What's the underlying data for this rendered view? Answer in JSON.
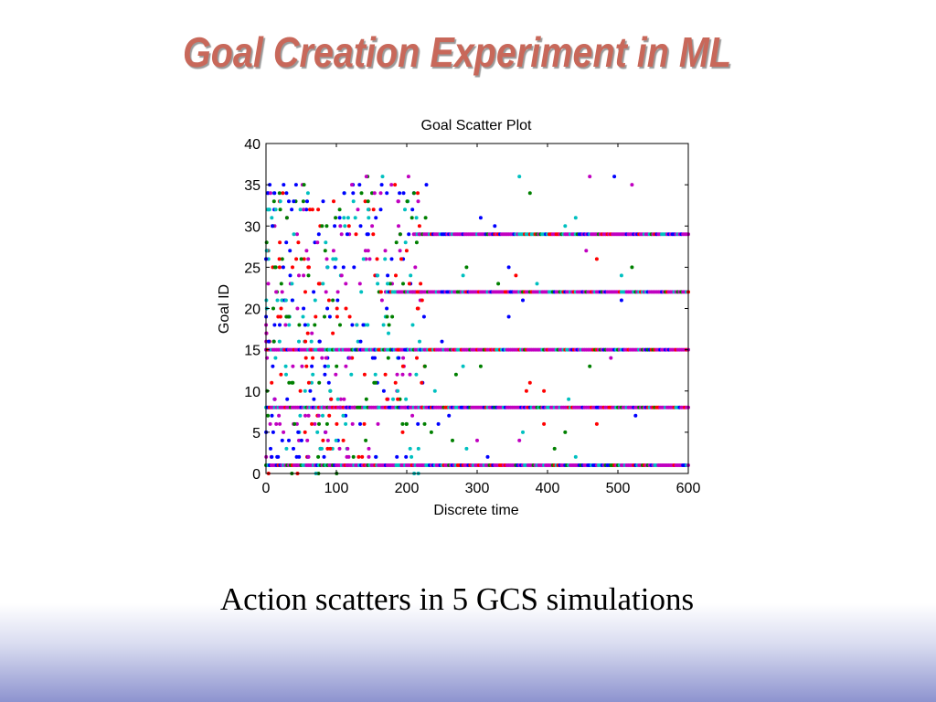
{
  "slide": {
    "title": "Goal Creation Experiment in ML",
    "caption": "Action scatters in 5 GCS simulations"
  },
  "colors": {
    "title": "#c8685a",
    "series": [
      "#ff0000",
      "#0000ff",
      "#008000",
      "#00c0c0",
      "#c000c0"
    ]
  },
  "chart_data": {
    "type": "scatter",
    "title": "Goal Scatter Plot",
    "xlabel": "Discrete time",
    "ylabel": "Goal ID",
    "xlim": [
      0,
      600
    ],
    "ylim": [
      0,
      40
    ],
    "xticks": [
      0,
      100,
      200,
      300,
      400,
      500,
      600
    ],
    "yticks": [
      0,
      5,
      10,
      15,
      20,
      25,
      30,
      35,
      40
    ],
    "grid": false,
    "legend": "none",
    "dense_bands": [
      {
        "goal_id": 1,
        "x_range": [
          0,
          600
        ]
      },
      {
        "goal_id": 8,
        "x_range": [
          0,
          600
        ]
      },
      {
        "goal_id": 15,
        "x_range": [
          0,
          600
        ]
      },
      {
        "goal_id": 22,
        "x_range": [
          170,
          600
        ]
      },
      {
        "goal_id": 29,
        "x_range": [
          210,
          600
        ]
      }
    ],
    "scattered_region": {
      "x_range": [
        0,
        230
      ],
      "y_range": [
        0,
        36
      ],
      "simulations": 5
    },
    "points": [
      [
        460,
        36
      ],
      [
        520,
        35
      ],
      [
        495,
        36
      ],
      [
        375,
        34
      ],
      [
        360,
        36
      ],
      [
        305,
        31
      ],
      [
        325,
        30
      ],
      [
        440,
        31
      ],
      [
        425,
        30
      ],
      [
        455,
        27
      ],
      [
        470,
        26
      ],
      [
        520,
        25
      ],
      [
        505,
        24
      ],
      [
        345,
        25
      ],
      [
        355,
        24
      ],
      [
        385,
        23
      ],
      [
        330,
        23
      ],
      [
        285,
        25
      ],
      [
        280,
        24
      ],
      [
        365,
        21
      ],
      [
        345,
        19
      ],
      [
        505,
        21
      ],
      [
        460,
        13
      ],
      [
        490,
        14
      ],
      [
        375,
        11
      ],
      [
        370,
        10
      ],
      [
        395,
        10
      ],
      [
        430,
        9
      ],
      [
        525,
        7
      ],
      [
        470,
        6
      ],
      [
        395,
        6
      ],
      [
        365,
        5
      ],
      [
        360,
        4
      ],
      [
        425,
        5
      ],
      [
        440,
        2
      ],
      [
        410,
        3
      ],
      [
        300,
        4
      ],
      [
        285,
        3
      ],
      [
        315,
        2
      ],
      [
        265,
        4
      ],
      [
        240,
        10
      ],
      [
        270,
        12
      ],
      [
        280,
        13
      ],
      [
        305,
        13
      ],
      [
        250,
        16
      ],
      [
        260,
        7
      ],
      [
        245,
        6
      ],
      [
        235,
        5
      ]
    ]
  }
}
